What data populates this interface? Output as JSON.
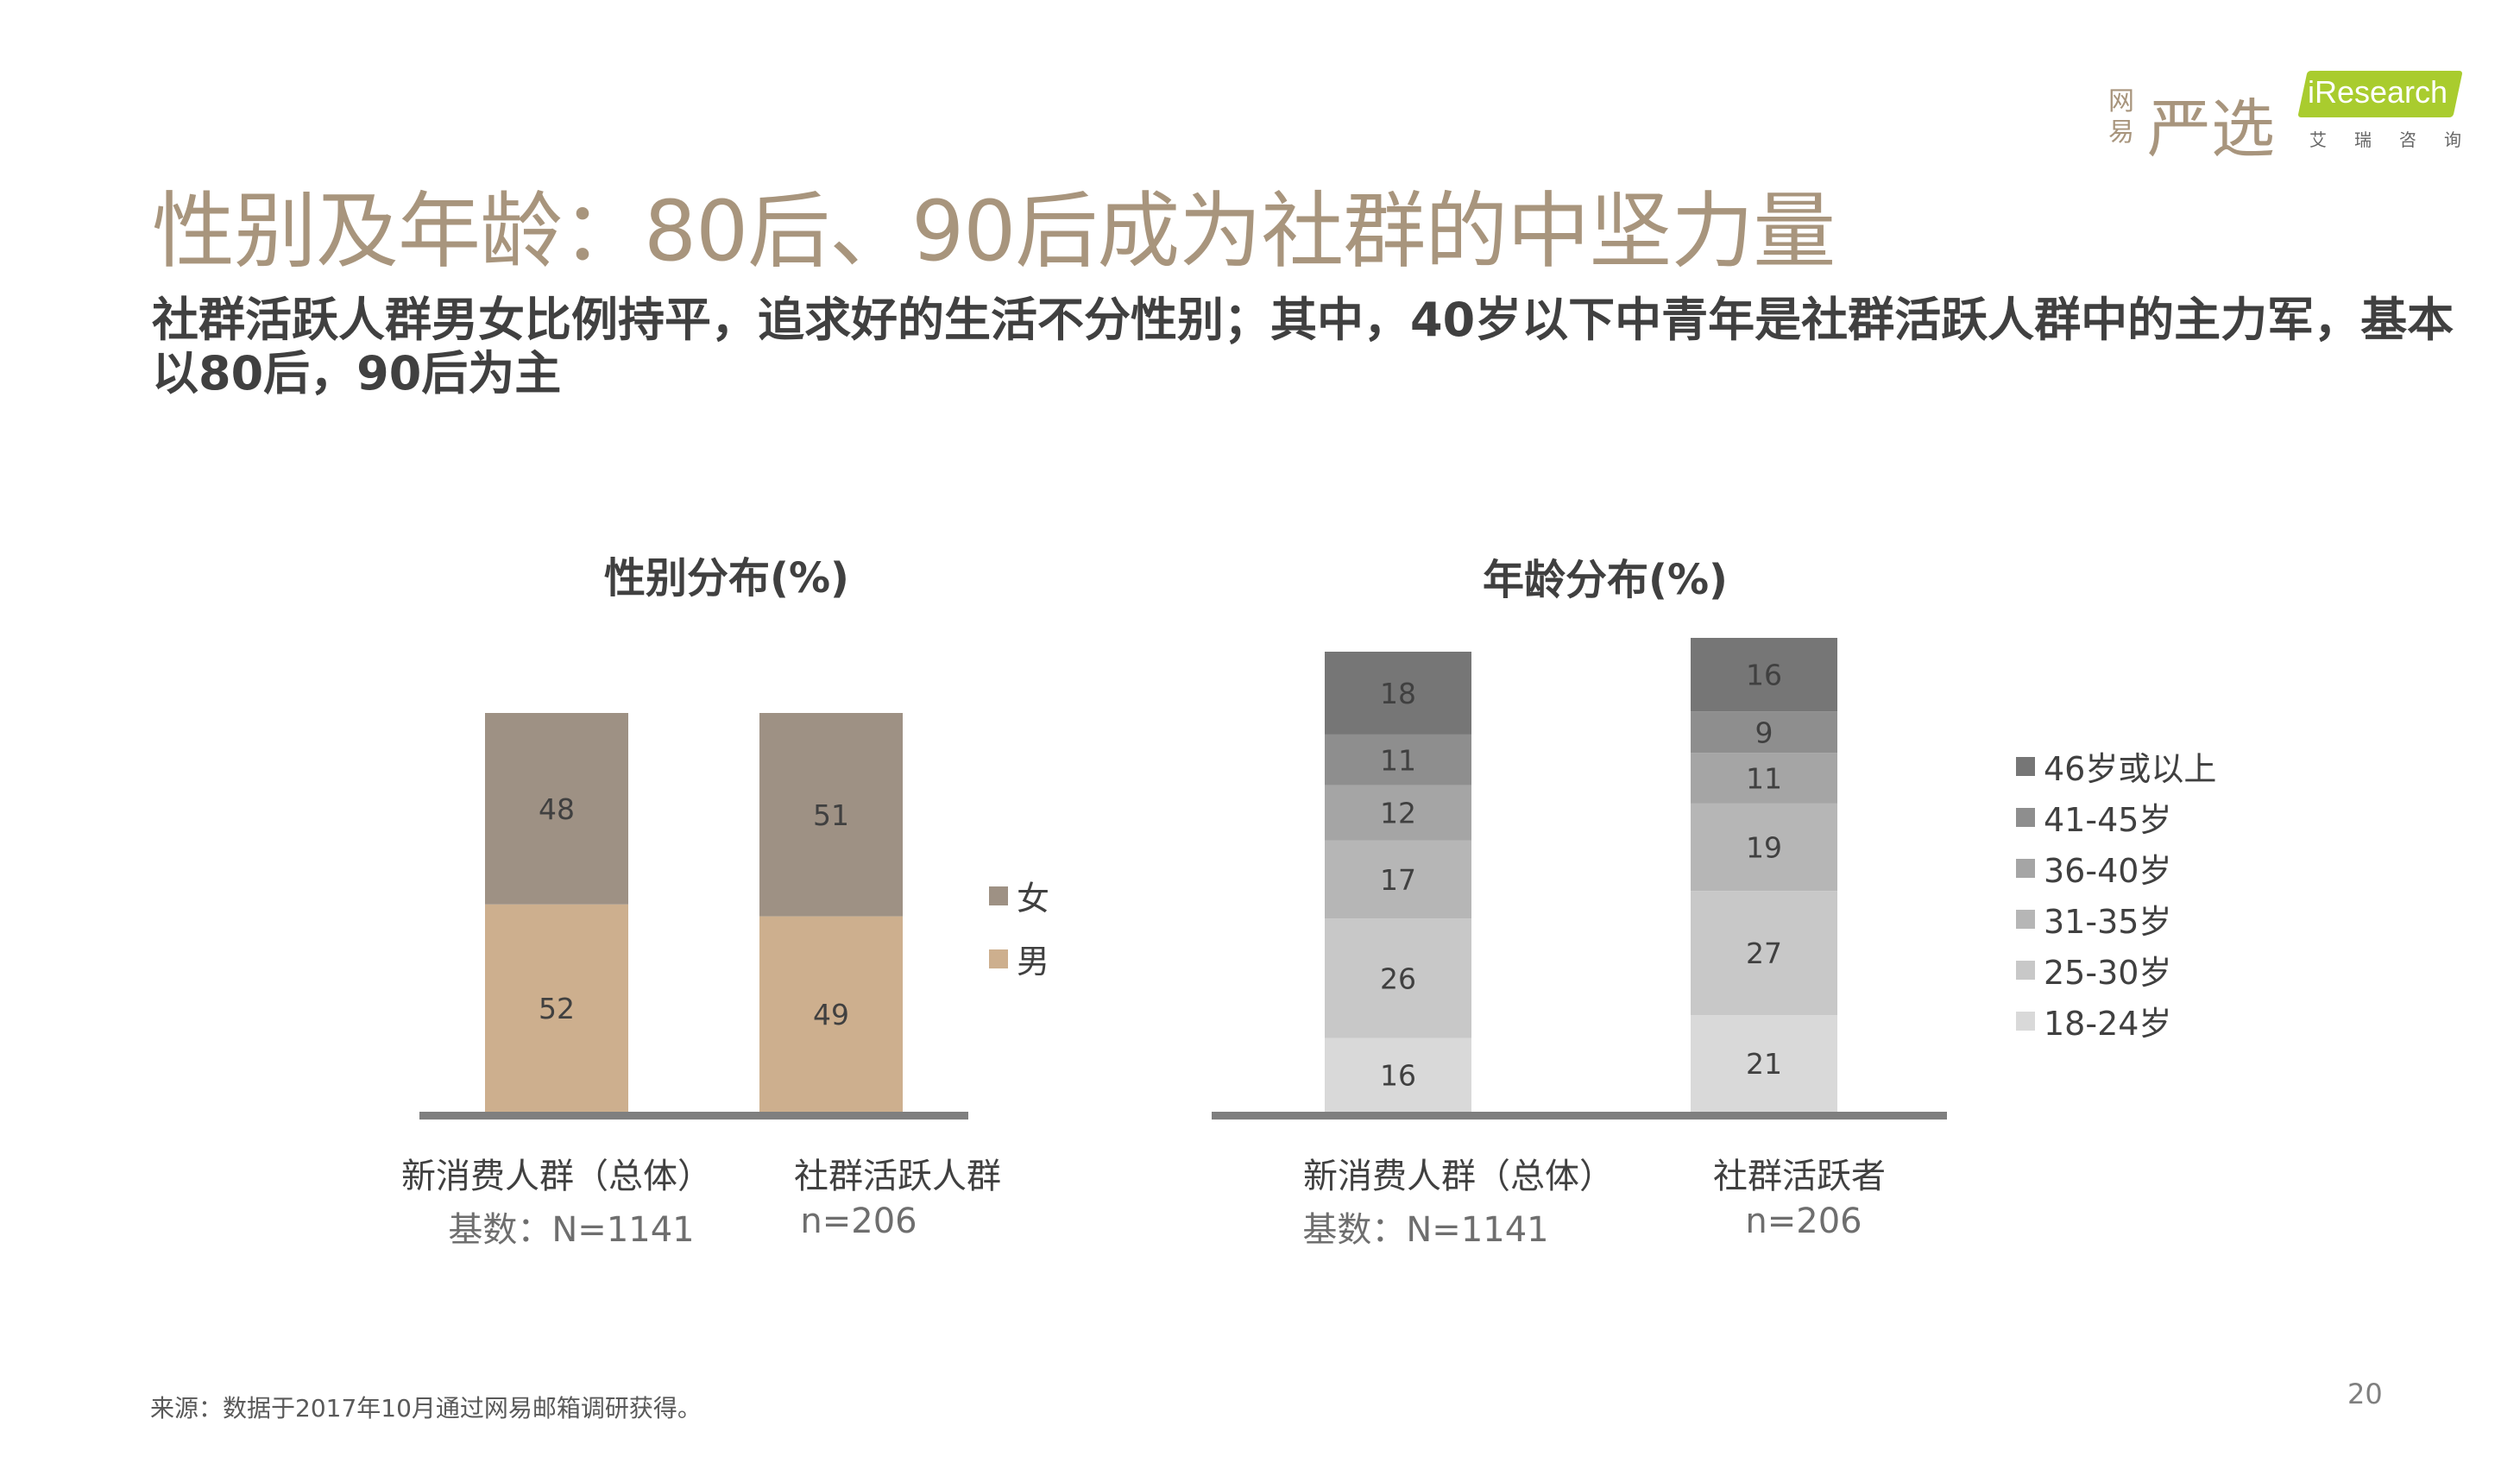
{
  "header": {
    "title": "性别及年龄：80后、90后成为社群的中坚力量",
    "subtitle": "社群活跃人群男女比例持平，追求好的生活不分性别；其中，40岁以下中青年是社群活跃人群中的主力军，基本以80后，90后为主"
  },
  "logos": {
    "netease_small": "网易",
    "netease_big": "严选",
    "iresearch_word": "iResearch",
    "iresearch_sub": [
      "艾",
      "瑞",
      "咨",
      "询"
    ]
  },
  "chart_data": [
    {
      "type": "bar",
      "stacked": true,
      "title": "性别分布(%)",
      "categories": [
        "新消费人群（总体）",
        "社群活跃人群"
      ],
      "category_notes": [
        "基数：N=1141",
        "n=206"
      ],
      "series": [
        {
          "name": "男",
          "values": [
            52,
            49
          ],
          "color": "#CDAF8E"
        },
        {
          "name": "女",
          "values": [
            48,
            51
          ],
          "color": "#9E9184"
        }
      ],
      "legend_position": "right",
      "grid": false
    },
    {
      "type": "bar",
      "stacked": true,
      "title": "年龄分布(%)",
      "categories": [
        "新消费人群（总体）",
        "社群活跃者"
      ],
      "category_notes": [
        "基数：N=1141",
        "n=206"
      ],
      "series": [
        {
          "name": "18-24岁",
          "values": [
            16,
            21
          ],
          "color": "#D9D9D9"
        },
        {
          "name": "25-30岁",
          "values": [
            26,
            27
          ],
          "color": "#C8C8C8"
        },
        {
          "name": "31-35岁",
          "values": [
            17,
            19
          ],
          "color": "#B6B6B6"
        },
        {
          "name": "36-40岁",
          "values": [
            12,
            11
          ],
          "color": "#A5A5A5"
        },
        {
          "name": "41-45岁",
          "values": [
            11,
            9
          ],
          "color": "#8E8E8E"
        },
        {
          "name": "46岁或以上",
          "values": [
            18,
            16
          ],
          "color": "#767676"
        }
      ],
      "legend_position": "right",
      "grid": false
    }
  ],
  "footer": {
    "source": "来源：数据于2017年10月通过网易邮箱调研获得。",
    "page": "20"
  }
}
